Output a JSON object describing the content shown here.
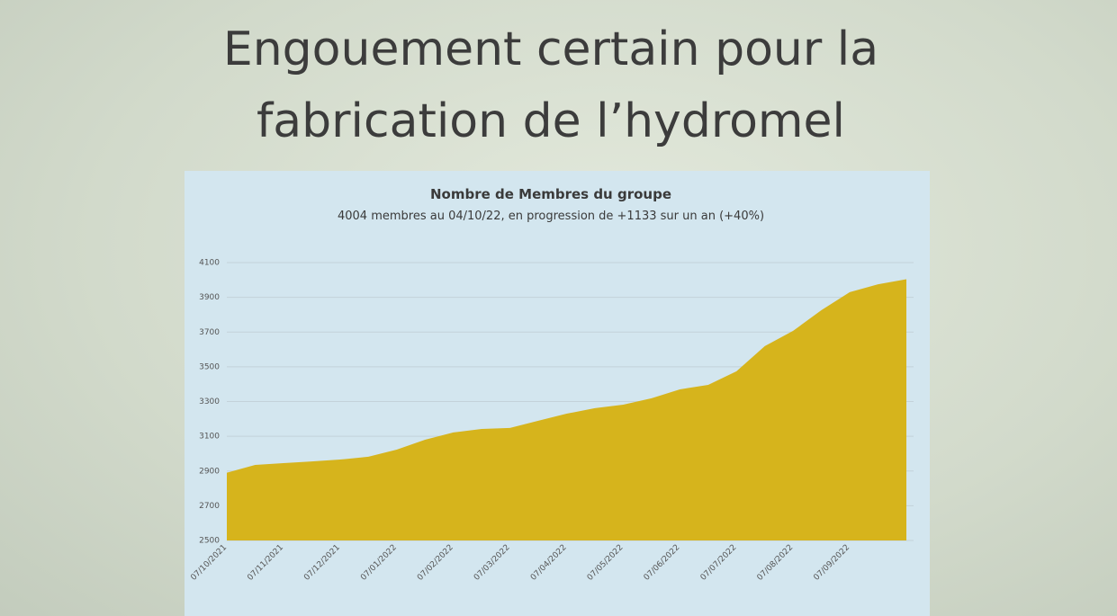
{
  "slide_title": [
    "Engouement certain pour la",
    "fabrication de l’hydromel"
  ],
  "chart_data": {
    "type": "area",
    "title": "Nombre de Membres du groupe",
    "subtitle": "4004 membres au 04/10/22, en progression de +1133 sur un an (+40%)",
    "categories": [
      "07/10/2021",
      null,
      "07/11/2021",
      null,
      "07/12/2021",
      null,
      "07/01/2022",
      null,
      "07/02/2022",
      null,
      "07/03/2022",
      null,
      "07/04/2022",
      null,
      "07/05/2022",
      null,
      "07/06/2022",
      null,
      "07/07/2022",
      null,
      "07/08/2022",
      null,
      "07/09/2022",
      null,
      null
    ],
    "values": [
      2890,
      2935,
      2945,
      2955,
      2966,
      2982,
      3023,
      3080,
      3122,
      3142,
      3148,
      3189,
      3230,
      3262,
      3282,
      3319,
      3370,
      3396,
      3474,
      3619,
      3707,
      3826,
      3930,
      3975,
      4004
    ],
    "color": "#d6b41c",
    "ylim": [
      2500,
      4100
    ],
    "yticks": [
      2500,
      2700,
      2900,
      3100,
      3300,
      3500,
      3700,
      3900,
      4100
    ],
    "grid": true
  }
}
